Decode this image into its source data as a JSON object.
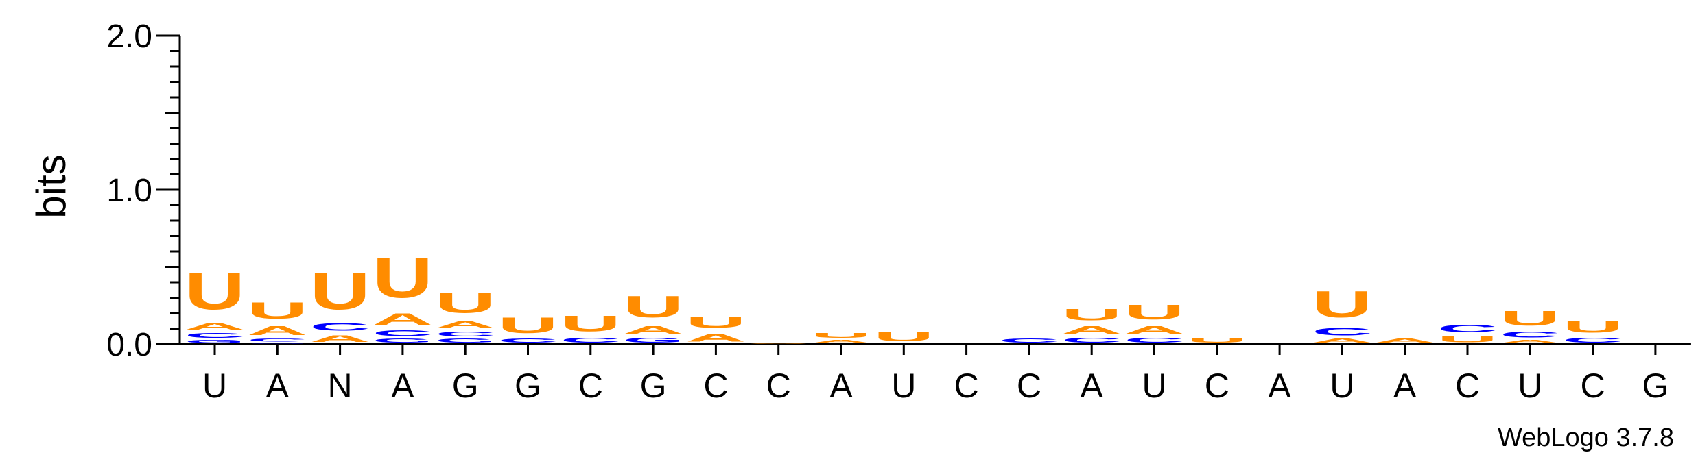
{
  "chart_data": {
    "type": "sequence-logo",
    "ylabel": "bits",
    "ylim": [
      0,
      2.0
    ],
    "yticks": [
      "0.0",
      "1.0",
      "2.0"
    ],
    "colors": {
      "U": "#ff8c00",
      "A": "#ff8c00",
      "C": "#0000ff",
      "G": "#0000ff"
    },
    "credit": "WebLogo 3.7.8",
    "positions": [
      {
        "label": "U",
        "stack": [
          [
            "G",
            0.03
          ],
          [
            "C",
            0.05
          ],
          [
            "A",
            0.07
          ],
          [
            "U",
            0.38
          ]
        ]
      },
      {
        "label": "A",
        "stack": [
          [
            "G",
            0.01
          ],
          [
            "C",
            0.03
          ],
          [
            "A",
            0.09
          ],
          [
            "U",
            0.17
          ]
        ]
      },
      {
        "label": "N",
        "stack": [
          [
            "A",
            0.07
          ],
          [
            "C",
            0.08
          ],
          [
            "U",
            0.38
          ]
        ]
      },
      {
        "label": "A",
        "stack": [
          [
            "G",
            0.04
          ],
          [
            "C",
            0.06
          ],
          [
            "A",
            0.12
          ],
          [
            "U",
            0.42
          ]
        ]
      },
      {
        "label": "G",
        "stack": [
          [
            "G",
            0.04
          ],
          [
            "C",
            0.05
          ],
          [
            "A",
            0.07
          ],
          [
            "U",
            0.21
          ]
        ]
      },
      {
        "label": "G",
        "stack": [
          [
            "C",
            0.04
          ],
          [
            "U",
            0.16
          ]
        ]
      },
      {
        "label": "C",
        "stack": [
          [
            "C",
            0.05
          ],
          [
            "U",
            0.16
          ]
        ]
      },
      {
        "label": "G",
        "stack": [
          [
            "G",
            0.05
          ],
          [
            "A",
            0.08
          ],
          [
            "U",
            0.22
          ]
        ]
      },
      {
        "label": "C",
        "stack": [
          [
            "A",
            0.08
          ],
          [
            "U",
            0.12
          ]
        ]
      },
      {
        "label": "C",
        "stack": [
          [
            "A",
            0.01
          ]
        ]
      },
      {
        "label": "A",
        "stack": [
          [
            "A",
            0.03
          ],
          [
            "U",
            0.05
          ]
        ]
      },
      {
        "label": "U",
        "stack": [
          [
            "U",
            0.09
          ]
        ]
      },
      {
        "label": "C",
        "stack": []
      },
      {
        "label": "C",
        "stack": [
          [
            "C",
            0.04
          ]
        ]
      },
      {
        "label": "A",
        "stack": [
          [
            "C",
            0.05
          ],
          [
            "A",
            0.08
          ],
          [
            "U",
            0.12
          ]
        ]
      },
      {
        "label": "U",
        "stack": [
          [
            "C",
            0.05
          ],
          [
            "A",
            0.08
          ],
          [
            "U",
            0.15
          ]
        ]
      },
      {
        "label": "C",
        "stack": [
          [
            "U",
            0.05
          ]
        ]
      },
      {
        "label": "A",
        "stack": []
      },
      {
        "label": "U",
        "stack": [
          [
            "A",
            0.04
          ],
          [
            "C",
            0.08
          ],
          [
            "U",
            0.27
          ]
        ]
      },
      {
        "label": "A",
        "stack": [
          [
            "A",
            0.04
          ]
        ]
      },
      {
        "label": "C",
        "stack": [
          [
            "U",
            0.06
          ],
          [
            "C",
            0.08
          ]
        ]
      },
      {
        "label": "U",
        "stack": [
          [
            "A",
            0.03
          ],
          [
            "C",
            0.06
          ],
          [
            "U",
            0.15
          ]
        ]
      },
      {
        "label": "C",
        "stack": [
          [
            "C",
            0.05
          ],
          [
            "U",
            0.12
          ]
        ]
      },
      {
        "label": "G",
        "stack": []
      }
    ]
  }
}
